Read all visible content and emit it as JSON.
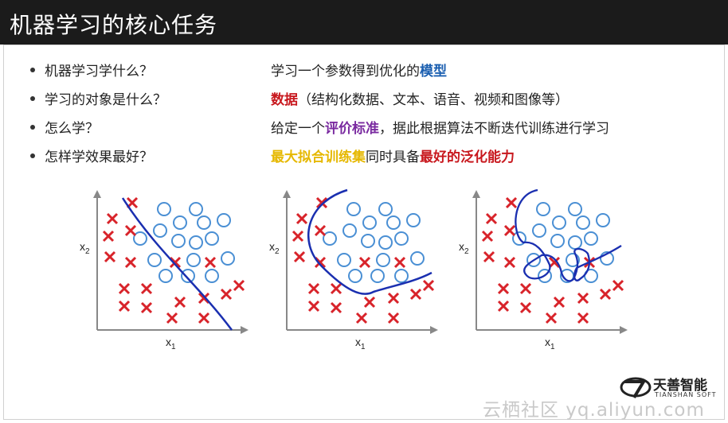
{
  "slide": {
    "title": "机器学习的核心任务",
    "rows": [
      {
        "question": "机器学习学什么？",
        "answer": [
          {
            "text": "学习一个参数得到优化的",
            "style": ""
          },
          {
            "text": "模型",
            "style": "blue"
          }
        ]
      },
      {
        "question": "学习的对象是什么？",
        "answer": [
          {
            "text": "数据",
            "style": "red"
          },
          {
            "text": "（结构化数据、文本、语音、视频和图像等）",
            "style": ""
          }
        ]
      },
      {
        "question": "怎么学？",
        "answer": [
          {
            "text": "给定一个",
            "style": ""
          },
          {
            "text": "评价标准",
            "style": "purple"
          },
          {
            "text": "，据此根据算法不断迭代训练进行学习",
            "style": ""
          }
        ]
      },
      {
        "question": "怎样学效果最好？",
        "answer": [
          {
            "text": "最大拟合训练集",
            "style": "yellow"
          },
          {
            "text": "同时具备",
            "style": ""
          },
          {
            "text": "最好的泛化能力",
            "style": "red"
          }
        ]
      }
    ]
  },
  "plots": {
    "axis_x_label": "x",
    "axis_x_sub": "1",
    "axis_y_label": "x",
    "axis_y_sub": "2"
  },
  "logo": {
    "name": "天善智能",
    "sub": "TIANSHAN SOFT"
  },
  "watermark": "云栖社区 yq.aliyun.com",
  "colors": {
    "title_bg": "#1b1b1b",
    "cross": "#d8232a",
    "circle": "#4a8fd4",
    "boundary": "#1a2fb0"
  }
}
